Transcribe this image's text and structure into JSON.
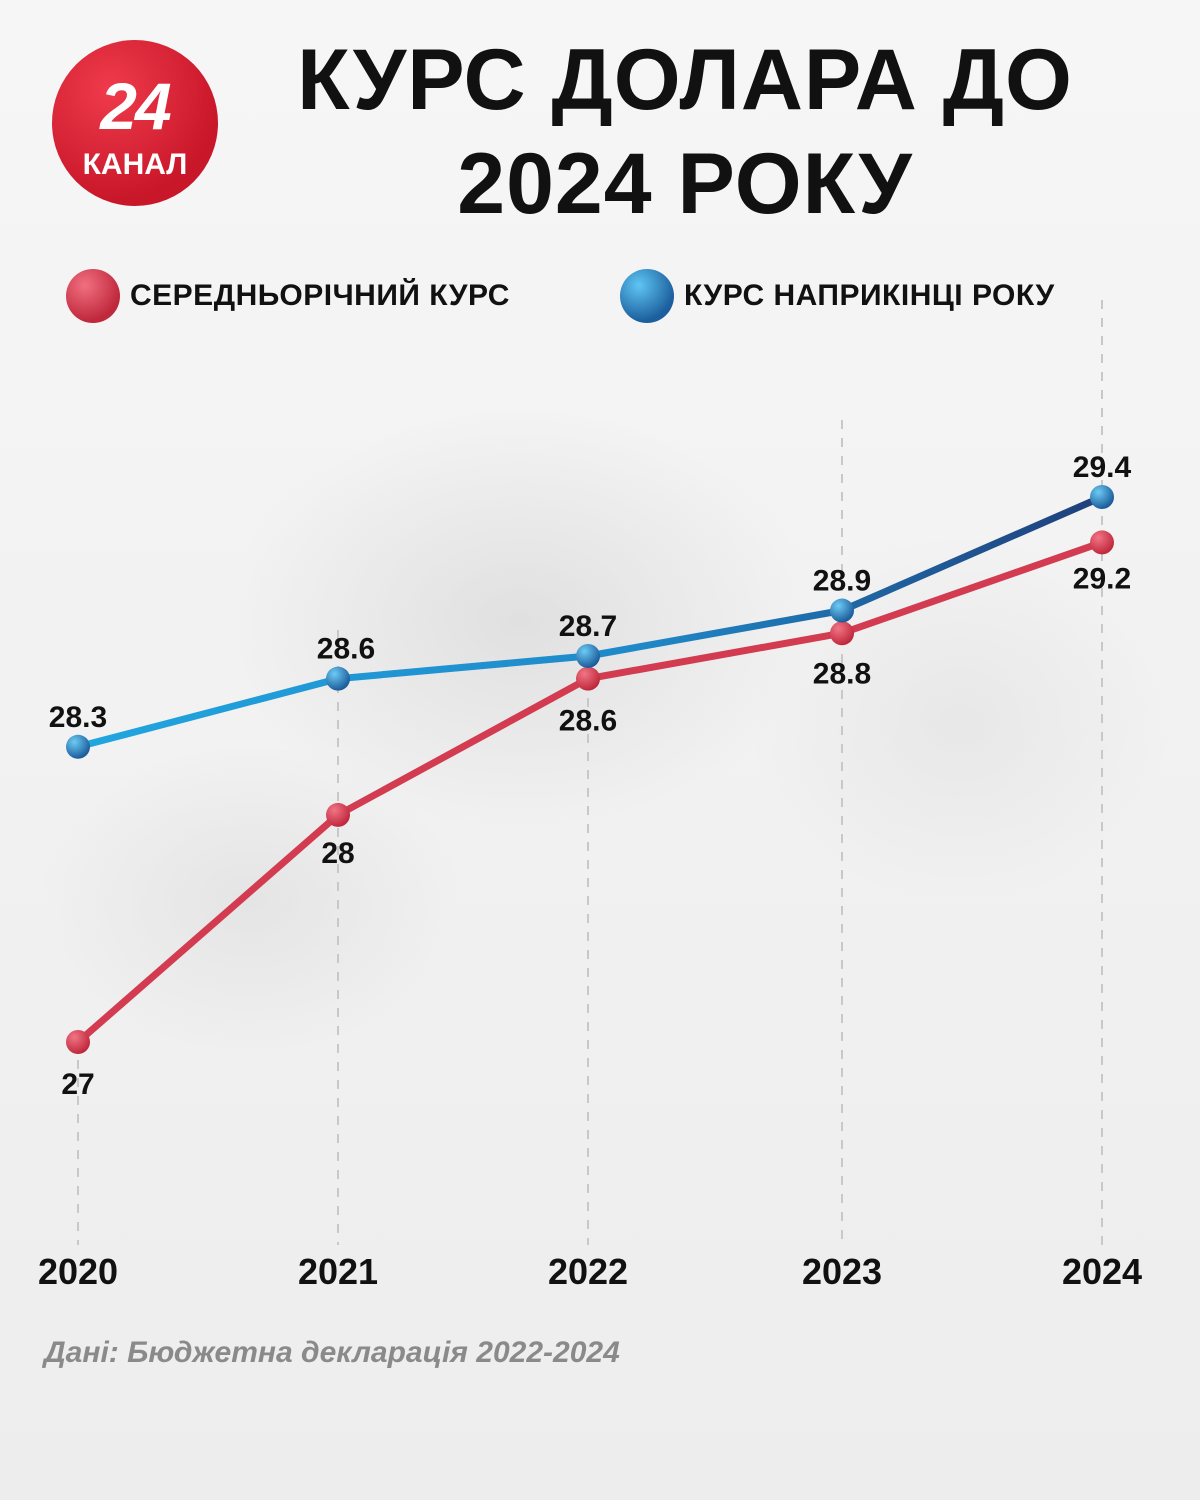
{
  "logo": {
    "number": "24",
    "label": "КАНАЛ"
  },
  "title": "КУРС ДОЛАРА ДО 2024 РОКУ",
  "source": "Дані: Бюджетна декларація 2022-2024",
  "colors": {
    "average": "#d23b50",
    "year_end": "#1f9ad6",
    "brand_red": "#d51b2d"
  },
  "chart_data": {
    "type": "line",
    "title": "КУРС ДОЛАРА ДО 2024 РОКУ",
    "categories": [
      "2020",
      "2021",
      "2022",
      "2023",
      "2024"
    ],
    "series": [
      {
        "name": "СЕРЕДНЬОРІЧНИЙ КУРС",
        "values": [
          27,
          28,
          28.6,
          28.8,
          29.2
        ],
        "labels": [
          "27",
          "28",
          "28.6",
          "28.8",
          "29.2"
        ],
        "color": "#d23b50"
      },
      {
        "name": "КУРС НАПРИКІНЦІ РОКУ",
        "values": [
          28.3,
          28.6,
          28.7,
          28.9,
          29.4
        ],
        "labels": [
          "28.3",
          "28.6",
          "28.7",
          "28.9",
          "29.4"
        ],
        "color": "#1f9ad6"
      }
    ],
    "legend_position": "top",
    "grid": "vertical dashed",
    "xlabel": "",
    "ylabel": ""
  }
}
